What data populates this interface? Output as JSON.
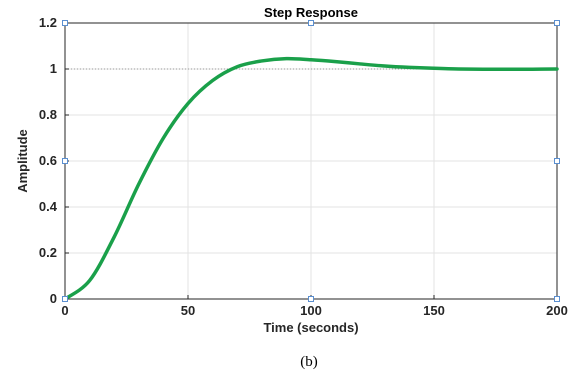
{
  "chart_data": {
    "type": "line",
    "title": "Step Response",
    "xlabel": "Time (seconds)",
    "ylabel": "Amplitude",
    "xlim": [
      0,
      200
    ],
    "ylim": [
      0,
      1.2
    ],
    "xticks": [
      0,
      50,
      100,
      150,
      200
    ],
    "yticks": [
      0,
      0.2,
      0.4,
      0.6,
      0.8,
      1,
      1.2
    ],
    "xtick_labels": [
      "0",
      "50",
      "100",
      "150",
      "200"
    ],
    "ytick_labels": [
      "0",
      "0.2",
      "0.4",
      "0.6",
      "0.8",
      "1",
      "1.2"
    ],
    "grid": true,
    "reference_line": {
      "y": 1,
      "style": "dotted"
    },
    "series": [
      {
        "color": "#1aa04a",
        "x": [
          0,
          10,
          20,
          30,
          40,
          50,
          60,
          70,
          80,
          90,
          100,
          110,
          120,
          130,
          140,
          150,
          160,
          170,
          180,
          190,
          200
        ],
        "y": [
          0,
          0.08,
          0.27,
          0.5,
          0.7,
          0.85,
          0.95,
          1.01,
          1.035,
          1.045,
          1.04,
          1.032,
          1.022,
          1.013,
          1.007,
          1.003,
          1.0,
          0.999,
          0.999,
          0.999,
          1.0
        ]
      }
    ]
  },
  "caption": "(b)"
}
